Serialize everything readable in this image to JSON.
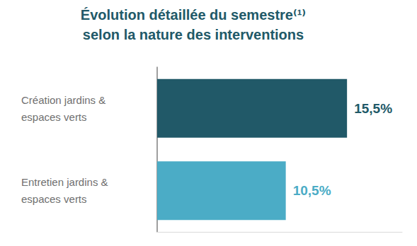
{
  "chart_data": {
    "type": "bar",
    "title": "Évolution détaillée du semestre⁽¹⁾\nselon la nature des interventions",
    "categories": [
      "Création jardins &\nespaces verts",
      "Entretien jardins &\nespaces verts"
    ],
    "values": [
      15.5,
      10.5
    ],
    "value_labels": [
      "15,5%",
      "10,5%"
    ],
    "colors": [
      "#215968",
      "#4bacc6"
    ],
    "orientation": "horizontal",
    "data_labels": true,
    "tick_labels": "y",
    "grid": false,
    "xlim": [
      0,
      20
    ]
  }
}
